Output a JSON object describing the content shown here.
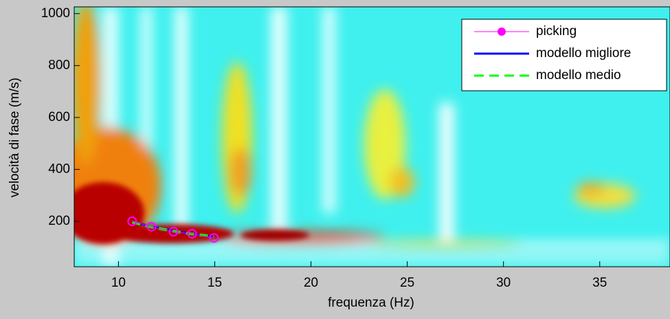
{
  "chart_data": {
    "type": "line",
    "xlabel": "frequenza (Hz)",
    "ylabel": "velocità di fase (m/s)",
    "x": [
      10.71,
      11.71,
      12.86,
      13.82,
      14.96
    ],
    "series": [
      {
        "name": "picking",
        "color": "#ff00ff",
        "values": [
          200,
          179,
          160,
          152,
          136
        ]
      },
      {
        "name": "modello migliore",
        "color": "#0000ff",
        "values": [
          198,
          180,
          163,
          152,
          140
        ]
      },
      {
        "name": "modello medio",
        "color": "#00ff00",
        "values": [
          197,
          178,
          162,
          151,
          142
        ]
      }
    ],
    "xlim": [
      7.7,
      38.65
    ],
    "ylim": [
      25,
      1026
    ],
    "xticks": [
      10,
      15,
      20,
      25,
      30,
      35
    ],
    "yticks": [
      200,
      400,
      600,
      800,
      1000
    ],
    "legend": "top-right"
  }
}
